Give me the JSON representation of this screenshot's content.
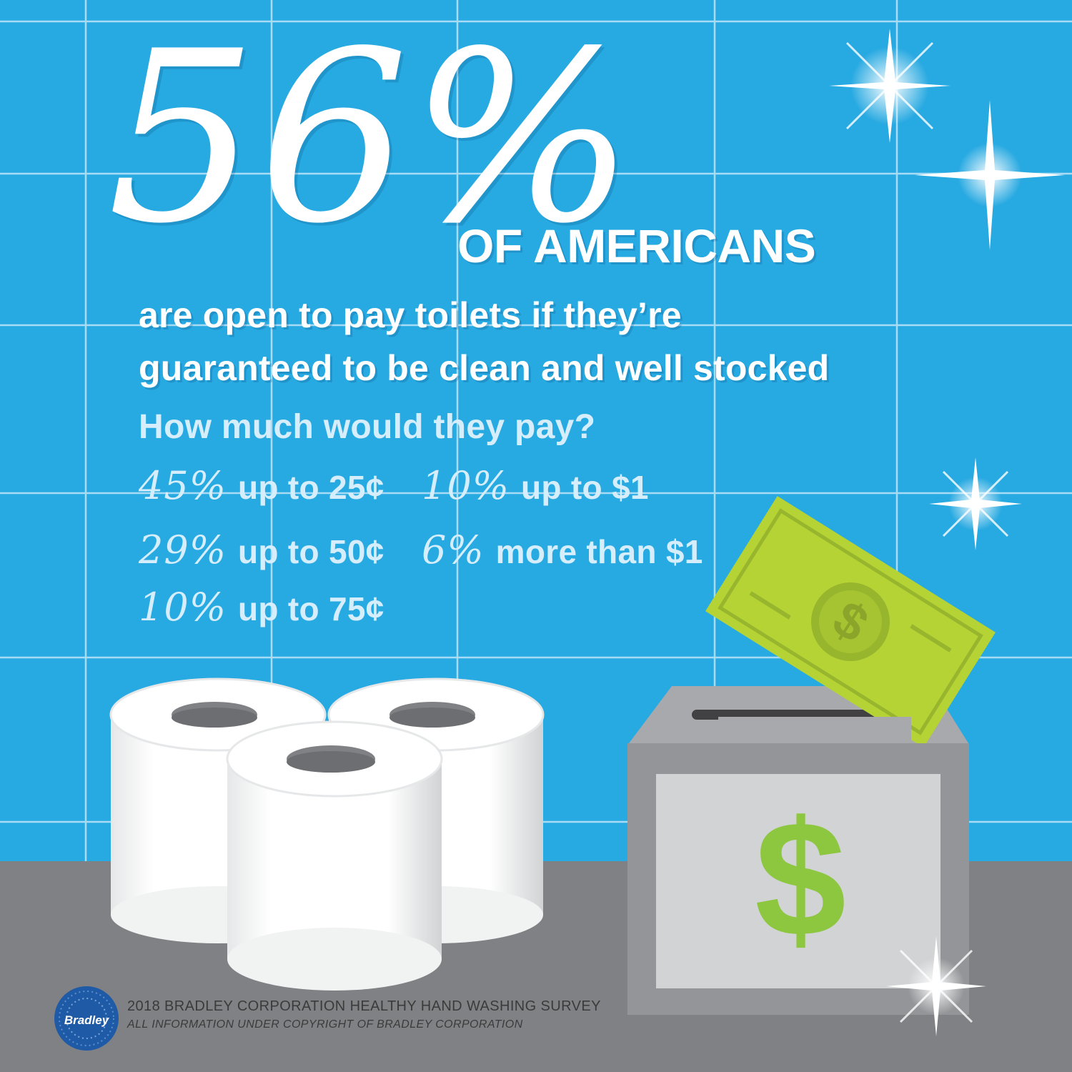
{
  "headline": {
    "stat": "56%",
    "subhead": "OF AMERICANS",
    "description_lines": [
      "are open to pay toilets if they’re",
      "guaranteed to be clean and well stocked"
    ]
  },
  "question": "How much would they pay?",
  "options": [
    {
      "percent": "45%",
      "label": "up to 25¢"
    },
    {
      "percent": "29%",
      "label": "up to 50¢"
    },
    {
      "percent": "10%",
      "label": "up to 75¢"
    },
    {
      "percent": "10%",
      "label": "up to $1"
    },
    {
      "percent": "6%",
      "label": "more than $1"
    }
  ],
  "illustration": {
    "box_symbol": "$",
    "bill_symbol": "$",
    "icons": [
      "toilet-paper-roll-icon",
      "donation-box-icon",
      "dollar-bill-icon",
      "sparkle-icon"
    ]
  },
  "footer": {
    "logo_text": "Bradley",
    "survey": "2018 BRADLEY CORPORATION HEALTHY HAND WASHING SURVEY",
    "copyright": "ALL INFORMATION UNDER COPYRIGHT OF BRADLEY CORPORATION"
  },
  "colors": {
    "wall": "#27a9e1",
    "floor": "#808184",
    "text": "#ffffff",
    "money_green": "#8dc63f",
    "bill_green": "#b5d334"
  }
}
